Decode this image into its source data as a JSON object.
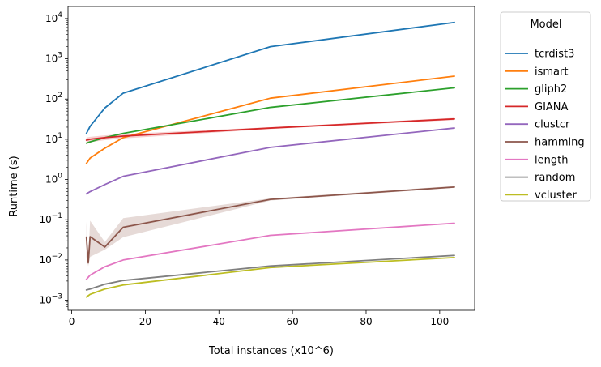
{
  "chart_data": {
    "type": "line",
    "title": "",
    "xlabel": "Total instances (x10^6)",
    "ylabel": "Runtime (s)",
    "xlim": [
      -1,
      109.5
    ],
    "ylim_log10": [
      -3.25,
      4.3
    ],
    "yscale": "log",
    "grid": false,
    "x_ticks": [
      0,
      20,
      40,
      60,
      80,
      100
    ],
    "x_tick_labels": [
      "0",
      "20",
      "40",
      "60",
      "80",
      "100"
    ],
    "y_ticks_exp": [
      -3,
      -2,
      -1,
      0,
      1,
      2,
      3,
      4
    ],
    "y_tick_labels": [
      {
        "base": "10",
        "exp": "−3"
      },
      {
        "base": "10",
        "exp": "−2"
      },
      {
        "base": "10",
        "exp": "−1"
      },
      {
        "base": "10",
        "exp": "0"
      },
      {
        "base": "10",
        "exp": "1"
      },
      {
        "base": "10",
        "exp": "2"
      },
      {
        "base": "10",
        "exp": "3"
      },
      {
        "base": "10",
        "exp": "4"
      }
    ],
    "legend": {
      "title": "Model",
      "placement": "outside-right"
    },
    "series": [
      {
        "name": "tcrdist3",
        "color": "#1f77b4",
        "x": [
          4,
          5,
          9,
          14,
          54,
          104
        ],
        "y": [
          14,
          21,
          60,
          140,
          2000,
          8000
        ]
      },
      {
        "name": "ismart",
        "color": "#ff7f0e",
        "x": [
          4,
          5,
          9,
          14,
          54,
          104
        ],
        "y": [
          2.5,
          3.4,
          6,
          11,
          105,
          370
        ]
      },
      {
        "name": "gliph2",
        "color": "#2ca02c",
        "x": [
          4,
          5,
          9,
          14,
          54,
          104
        ],
        "y": [
          8,
          8.6,
          11,
          14,
          62,
          190
        ]
      },
      {
        "name": "GIANA",
        "color": "#d62728",
        "x": [
          4,
          5,
          9,
          14,
          54,
          104
        ],
        "y": [
          9.5,
          10,
          11,
          12,
          19,
          32
        ],
        "band_low": [
          7.5,
          8.5,
          9.5,
          10.5,
          18,
          30
        ],
        "band_high": [
          11,
          11.5,
          12.5,
          13.5,
          20,
          34
        ]
      },
      {
        "name": "clustcr",
        "color": "#9467bd",
        "x": [
          4,
          5,
          9,
          14,
          54,
          104
        ],
        "y": [
          0.44,
          0.5,
          0.75,
          1.2,
          6.3,
          19
        ]
      },
      {
        "name": "hamming",
        "color": "#8c564b",
        "x": [
          4,
          4.5,
          5,
          9,
          14,
          54,
          104
        ],
        "y": [
          0.037,
          0.0085,
          0.038,
          0.021,
          0.065,
          0.32,
          0.65
        ],
        "band_low": [
          0.012,
          0.007,
          0.012,
          0.018,
          0.037,
          0.3,
          0.62
        ],
        "band_high": [
          0.09,
          0.01,
          0.095,
          0.028,
          0.11,
          0.34,
          0.69
        ]
      },
      {
        "name": "length",
        "color": "#e377c2",
        "x": [
          4,
          5,
          9,
          14,
          54,
          104
        ],
        "y": [
          0.0033,
          0.0042,
          0.0068,
          0.01,
          0.041,
          0.082
        ]
      },
      {
        "name": "random",
        "color": "#7f7f7f",
        "x": [
          4,
          5,
          9,
          14,
          54,
          104
        ],
        "y": [
          0.0018,
          0.0019,
          0.0025,
          0.0031,
          0.0071,
          0.013
        ]
      },
      {
        "name": "vcluster",
        "color": "#bcbd22",
        "x": [
          4,
          5,
          9,
          14,
          54,
          104
        ],
        "y": [
          0.0012,
          0.0014,
          0.0019,
          0.0024,
          0.0065,
          0.0115
        ]
      }
    ]
  }
}
